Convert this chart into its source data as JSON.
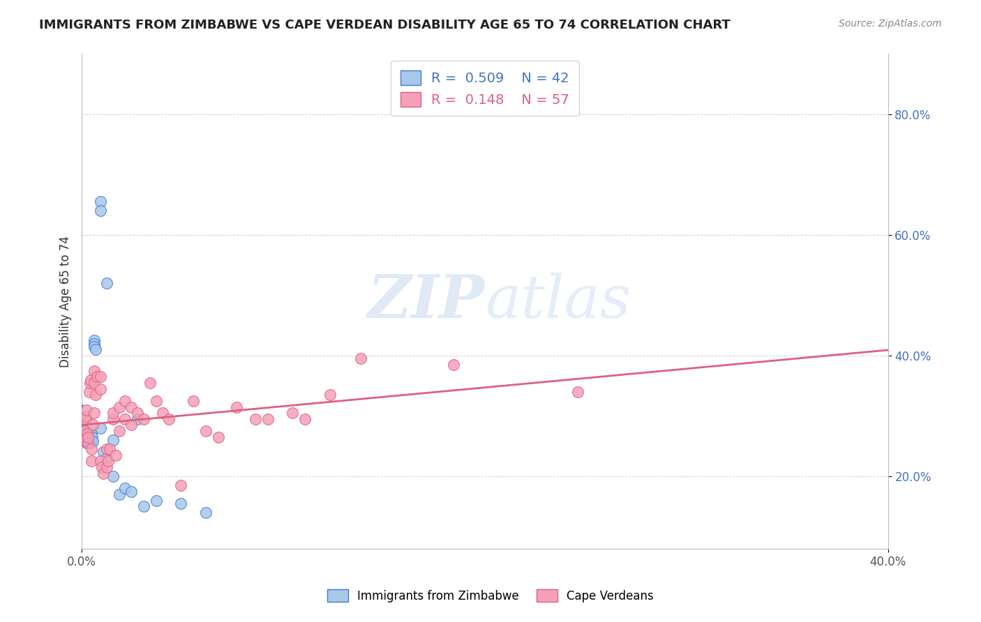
{
  "title": "IMMIGRANTS FROM ZIMBABWE VS CAPE VERDEAN DISABILITY AGE 65 TO 74 CORRELATION CHART",
  "source": "Source: ZipAtlas.com",
  "ylabel": "Disability Age 65 to 74",
  "legend1_label": "Immigrants from Zimbabwe",
  "legend2_label": "Cape Verdeans",
  "r1": 0.509,
  "n1": 42,
  "r2": 0.148,
  "n2": 57,
  "color_blue": "#a8c8e8",
  "color_pink": "#f4a0b8",
  "line_blue": "#4477dd",
  "line_pink": "#e06080",
  "watermark_zip": "ZIP",
  "watermark_atlas": "atlas",
  "xlim_data": [
    0.0,
    0.13
  ],
  "xlim_pct": [
    0.0,
    0.4
  ],
  "ylim": [
    0.08,
    0.9
  ],
  "ytick_positions": [
    0.2,
    0.4,
    0.6,
    0.8
  ],
  "ytick_labels": [
    "20.0%",
    "40.0%",
    "60.0%",
    "80.0%"
  ],
  "zimbabwe_x": [
    0.0002,
    0.0003,
    0.0004,
    0.0005,
    0.0006,
    0.0006,
    0.0007,
    0.0008,
    0.0008,
    0.0009,
    0.001,
    0.001,
    0.001,
    0.0012,
    0.0013,
    0.0013,
    0.0014,
    0.0015,
    0.0015,
    0.0016,
    0.0017,
    0.0018,
    0.002,
    0.002,
    0.002,
    0.0022,
    0.003,
    0.003,
    0.003,
    0.0035,
    0.004,
    0.004,
    0.005,
    0.005,
    0.006,
    0.007,
    0.008,
    0.009,
    0.01,
    0.012,
    0.016,
    0.02
  ],
  "zimbabwe_y": [
    0.275,
    0.27,
    0.26,
    0.275,
    0.27,
    0.265,
    0.26,
    0.265,
    0.255,
    0.258,
    0.27,
    0.268,
    0.262,
    0.27,
    0.265,
    0.255,
    0.26,
    0.258,
    0.26,
    0.27,
    0.265,
    0.258,
    0.425,
    0.42,
    0.415,
    0.41,
    0.655,
    0.64,
    0.28,
    0.24,
    0.23,
    0.52,
    0.2,
    0.26,
    0.17,
    0.18,
    0.175,
    0.295,
    0.15,
    0.16,
    0.155,
    0.14
  ],
  "capeverde_x": [
    0.0002,
    0.0004,
    0.0005,
    0.0006,
    0.0007,
    0.0008,
    0.0009,
    0.001,
    0.001,
    0.0012,
    0.0013,
    0.0014,
    0.0015,
    0.0016,
    0.0018,
    0.002,
    0.002,
    0.002,
    0.0022,
    0.0025,
    0.003,
    0.003,
    0.003,
    0.0032,
    0.0035,
    0.004,
    0.004,
    0.0042,
    0.0045,
    0.005,
    0.005,
    0.0055,
    0.006,
    0.006,
    0.007,
    0.007,
    0.008,
    0.008,
    0.009,
    0.01,
    0.011,
    0.012,
    0.013,
    0.014,
    0.016,
    0.018,
    0.02,
    0.022,
    0.025,
    0.028,
    0.03,
    0.034,
    0.036,
    0.04,
    0.045,
    0.06,
    0.08
  ],
  "capeverde_y": [
    0.26,
    0.265,
    0.275,
    0.295,
    0.3,
    0.31,
    0.27,
    0.255,
    0.265,
    0.34,
    0.355,
    0.36,
    0.245,
    0.225,
    0.285,
    0.305,
    0.355,
    0.375,
    0.335,
    0.365,
    0.365,
    0.345,
    0.225,
    0.215,
    0.205,
    0.245,
    0.215,
    0.225,
    0.245,
    0.295,
    0.305,
    0.235,
    0.315,
    0.275,
    0.295,
    0.325,
    0.315,
    0.285,
    0.305,
    0.295,
    0.355,
    0.325,
    0.305,
    0.295,
    0.185,
    0.325,
    0.275,
    0.265,
    0.315,
    0.295,
    0.295,
    0.305,
    0.295,
    0.335,
    0.395,
    0.385,
    0.34
  ]
}
